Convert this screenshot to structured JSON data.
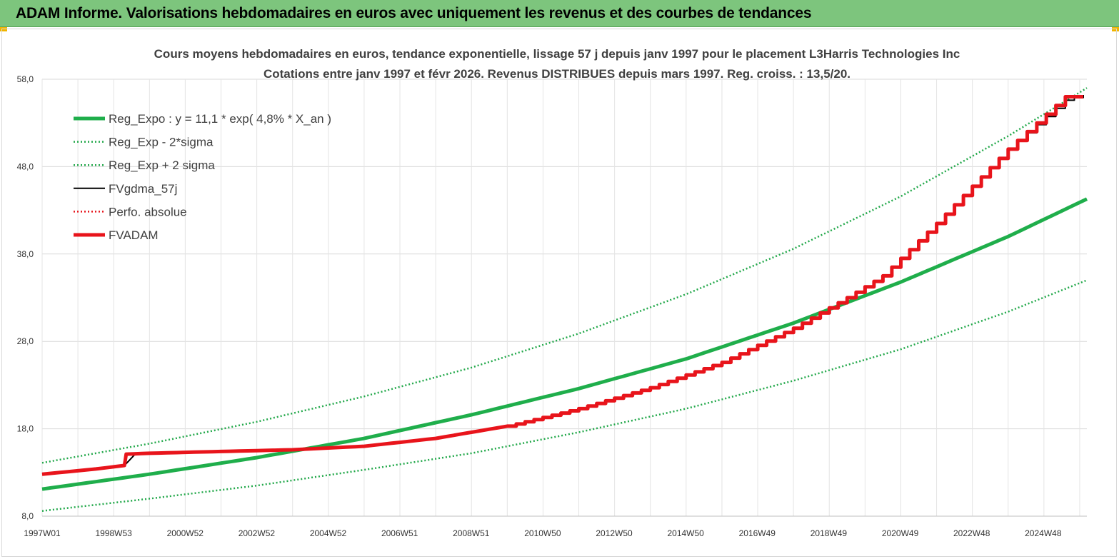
{
  "banner": {
    "title": "ADAM Informe. Valorisations hebdomadaires en euros avec uniquement les revenus et des courbes de tendances"
  },
  "colors": {
    "banner_bg": "#7dc57d",
    "green": "#1fae4b",
    "green_dotted": "#22a84a",
    "black": "#000000",
    "red": "#e8141b"
  },
  "chart_data": {
    "type": "line",
    "title": "Cours moyens hebdomadaires en euros, tendance exponentielle, lissage 57 j depuis janv 1997 pour le placement L3Harris Technologies Inc",
    "subtitle": "Cotations entre janv 1997 et févr 2026. Revenus DISTRIBUES depuis mars 1997. Reg. croiss. : 13,5/20.",
    "xlabel": "",
    "ylabel": "",
    "ylim": [
      8,
      58
    ],
    "y_ticks": [
      "8,0",
      "18,0",
      "28,0",
      "38,0",
      "48,0",
      "58,0"
    ],
    "x_ticks": [
      "1997W01",
      "1998W53",
      "2000W52",
      "2002W52",
      "2004W52",
      "2006W51",
      "2008W51",
      "2010W50",
      "2012W50",
      "2014W50",
      "2016W49",
      "2018W49",
      "2020W49",
      "2022W48",
      "2024W48"
    ],
    "x_range": [
      1997.0,
      2026.2
    ],
    "grid": "vertical and horizontal gridlines",
    "legend_position": "top-left",
    "series": [
      {
        "name": "Reg_Expo : y = 11,1 * exp( 4,8% *  X_an )",
        "style": "solid-thick",
        "color": "#1fae4b",
        "x": [
          1997.0,
          2000.0,
          2003.0,
          2006.0,
          2009.0,
          2012.0,
          2015.0,
          2018.0,
          2021.0,
          2024.0,
          2026.2
        ],
        "y": [
          11.1,
          12.8,
          14.7,
          16.9,
          19.6,
          22.6,
          26.0,
          30.1,
          34.8,
          40.0,
          44.3
        ]
      },
      {
        "name": "Reg_Exp - 2*sigma",
        "style": "dotted",
        "color": "#22a84a",
        "x": [
          1997.0,
          2000.0,
          2003.0,
          2006.0,
          2009.0,
          2012.0,
          2015.0,
          2018.0,
          2021.0,
          2024.0,
          2026.2
        ],
        "y": [
          8.6,
          10.0,
          11.5,
          13.3,
          15.2,
          17.6,
          20.3,
          23.5,
          27.1,
          31.4,
          35.0
        ]
      },
      {
        "name": "Reg_Exp + 2 sigma",
        "style": "dotted",
        "color": "#22a84a",
        "x": [
          1997.0,
          2000.0,
          2003.0,
          2006.0,
          2009.0,
          2012.0,
          2015.0,
          2018.0,
          2021.0,
          2024.0,
          2026.2
        ],
        "y": [
          14.1,
          16.3,
          18.8,
          21.7,
          25.0,
          28.9,
          33.4,
          38.6,
          44.6,
          51.5,
          57.0
        ]
      },
      {
        "name": "FVgdma_57j",
        "style": "solid",
        "color": "#000000",
        "x": [
          1997.0,
          1998.5,
          1999.3,
          1999.6,
          2000.0,
          2002.0,
          2004.0,
          2006.0,
          2008.0,
          2010.0,
          2012.0,
          2014.0,
          2016.0,
          2018.0,
          2019.5,
          2020.5,
          2022.0,
          2024.0,
          2025.6,
          2026.1
        ],
        "y": [
          12.8,
          13.4,
          13.8,
          15.1,
          15.2,
          15.4,
          15.6,
          16.0,
          16.9,
          18.3,
          20.3,
          22.7,
          25.6,
          29.5,
          33.0,
          35.5,
          41.5,
          50.0,
          55.6,
          56.2
        ]
      },
      {
        "name": "Perfo. absolue",
        "style": "dotted",
        "color": "#e8141b",
        "x": [
          1997.0,
          1998.5,
          1999.3,
          1999.35,
          2000.0,
          2002.0,
          2004.0,
          2006.0,
          2008.0,
          2010.0,
          2012.0,
          2014.0,
          2016.0,
          2018.0,
          2019.5,
          2020.5,
          2022.0,
          2024.0,
          2025.6,
          2026.1
        ],
        "y": [
          12.8,
          13.4,
          13.8,
          15.1,
          15.2,
          15.4,
          15.6,
          16.0,
          16.9,
          18.3,
          20.3,
          22.7,
          25.6,
          29.5,
          33.0,
          35.5,
          41.5,
          50.0,
          56.0,
          56.0
        ]
      },
      {
        "name": "FVADAM",
        "style": "solid-thick",
        "color": "#e8141b",
        "x": [
          1997.0,
          1998.5,
          1999.3,
          1999.35,
          2000.0,
          2002.0,
          2004.0,
          2006.0,
          2008.0,
          2010.0,
          2012.0,
          2014.0,
          2016.0,
          2018.0,
          2019.5,
          2020.5,
          2022.0,
          2024.0,
          2025.6,
          2026.1
        ],
        "y": [
          12.8,
          13.4,
          13.8,
          15.1,
          15.2,
          15.4,
          15.6,
          16.0,
          16.9,
          18.3,
          20.3,
          22.7,
          25.6,
          29.5,
          33.0,
          35.5,
          41.5,
          50.0,
          56.0,
          56.0
        ]
      }
    ]
  }
}
